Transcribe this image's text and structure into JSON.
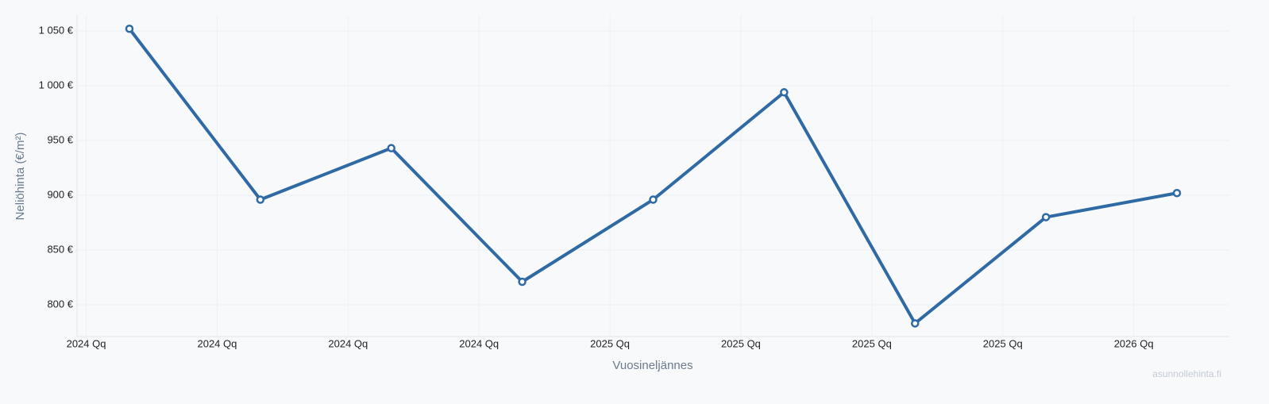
{
  "chart_data": {
    "type": "line",
    "y_label": "Neliöhinta (€/m²)",
    "x_label": "Vuosineljännes",
    "watermark": "asunnollehinta.fi",
    "x": [
      0.33,
      1.33,
      2.33,
      3.33,
      4.33,
      5.33,
      6.33,
      7.33,
      8.33
    ],
    "series": [
      {
        "color": "#2f6aa5",
        "values": [
          1052,
          896,
          943,
          821,
          896,
          994,
          783,
          880,
          902
        ]
      }
    ],
    "xlim": [
      -0.07,
      8.73
    ],
    "xticks": [
      {
        "value": 0,
        "label": "2024 Qq"
      },
      {
        "value": 1,
        "label": "2024 Qq"
      },
      {
        "value": 2,
        "label": "2024 Qq"
      },
      {
        "value": 3,
        "label": "2024 Qq"
      },
      {
        "value": 4,
        "label": "2025 Qq"
      },
      {
        "value": 5,
        "label": "2025 Qq"
      },
      {
        "value": 6,
        "label": "2025 Qq"
      },
      {
        "value": 7,
        "label": "2025 Qq"
      },
      {
        "value": 8,
        "label": "2026 Qq"
      }
    ],
    "ylim": [
      771,
      1064.5
    ],
    "yticks": [
      {
        "value": 800,
        "label": "800 €"
      },
      {
        "value": 850,
        "label": "850 €"
      },
      {
        "value": 900,
        "label": "900 €"
      },
      {
        "value": 950,
        "label": "950 €"
      },
      {
        "value": 1000,
        "label": "1 000 €"
      },
      {
        "value": 1050,
        "label": "1 050 €"
      }
    ],
    "grid": true
  }
}
